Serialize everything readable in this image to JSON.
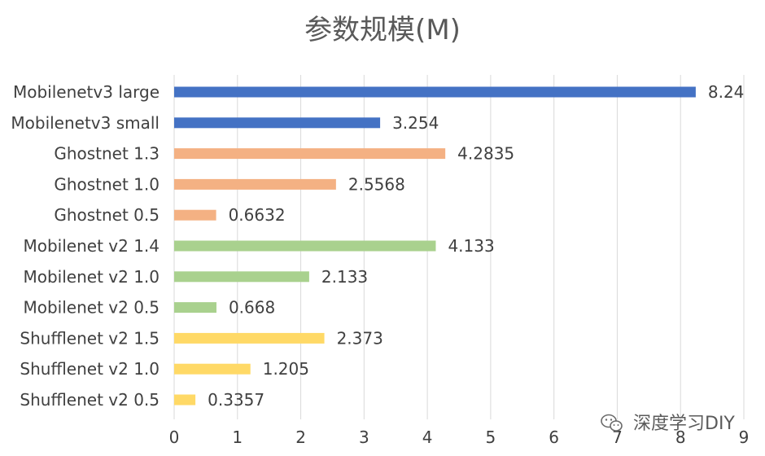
{
  "chart_data": {
    "type": "bar",
    "orientation": "horizontal",
    "title": "参数规模(M)",
    "xlabel": "",
    "ylabel": "",
    "xlim": [
      0,
      9
    ],
    "x_ticks": [
      "0",
      "1",
      "2",
      "3",
      "4",
      "5",
      "6",
      "7",
      "8",
      "9"
    ],
    "grid": true,
    "legend": "none",
    "categories": [
      "Mobilenetv3 large",
      "Mobilenetv3 small",
      "Ghostnet 1.3",
      "Ghostnet 1.0",
      "Ghostnet 0.5",
      "Mobilenet v2 1.4",
      "Mobilenet v2 1.0",
      "Mobilenet v2 0.5",
      "Shufflenet v2 1.5",
      "Shufflenet v2 1.0",
      "Shufflenet v2 0.5"
    ],
    "values": [
      8.24,
      3.254,
      4.2835,
      2.5568,
      0.6632,
      4.133,
      2.133,
      0.668,
      2.373,
      1.205,
      0.3357
    ],
    "value_labels": [
      "8.24",
      "3.254",
      "4.2835",
      "2.5568",
      "0.6632",
      "4.133",
      "2.133",
      "0.668",
      "2.373",
      "1.205",
      "0.3357"
    ],
    "bar_colors": [
      "#4472c4",
      "#4472c4",
      "#f4b183",
      "#f4b183",
      "#f4b183",
      "#a9d18e",
      "#a9d18e",
      "#a9d18e",
      "#ffd966",
      "#ffd966",
      "#ffd966"
    ]
  },
  "watermark": {
    "text": "深度学习DIY",
    "icon": "wechat-icon"
  }
}
